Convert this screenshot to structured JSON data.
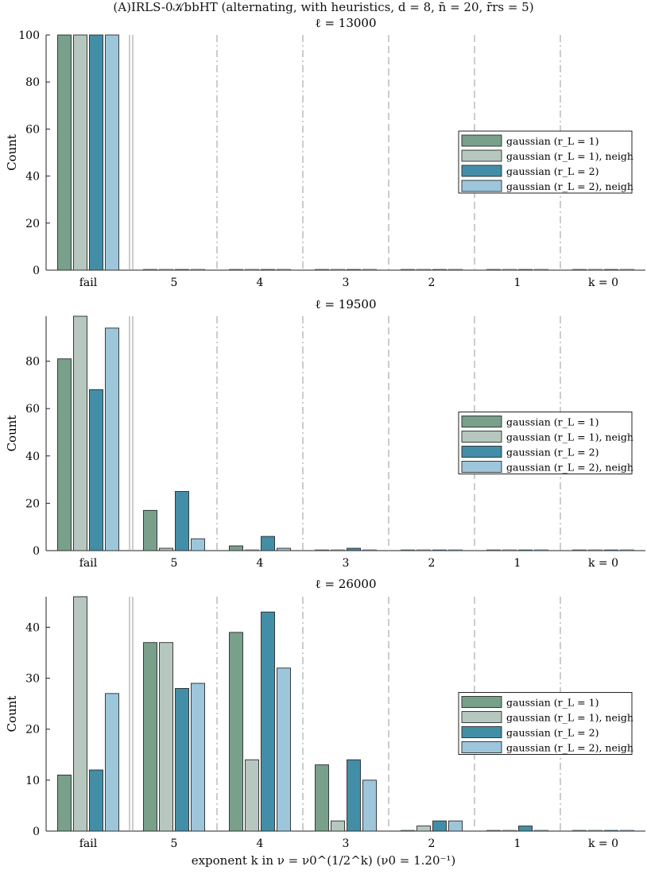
{
  "figure": {
    "title": "(A)IRLS-0𝒦bbHT (alternating, with heuristics, d = 8, n̄ = 20, r̄rs = 5)",
    "xlabel": "exponent k in ν = ν0^(1/2^k) (ν0 = 1.20⁻¹)",
    "colors": {
      "gaussian (r_L = 1)": "#78a08a",
      "gaussian (r_L = 1), neigh": "#b6c7bf",
      "gaussian (r_L = 2)": "#438ea7",
      "gaussian (r_L = 2), neigh": "#9dc6db"
    }
  },
  "chart_data": [
    {
      "type": "bar",
      "title": "ℓ = 13000",
      "xlabel": "",
      "ylabel": "Count",
      "ylim": [
        0,
        100
      ],
      "yticks": [
        0,
        20,
        40,
        60,
        80,
        100
      ],
      "categories": [
        "fail",
        "5",
        "4",
        "3",
        "2",
        "1",
        "k = 0"
      ],
      "legend": {
        "location": "right"
      },
      "series": [
        {
          "name": "gaussian (r_L = 1)",
          "label": "gaussian (r_L = 1)",
          "values": [
            100,
            0,
            0,
            0,
            0,
            0,
            0
          ]
        },
        {
          "name": "gaussian (r_L = 1), neigh",
          "label": "gaussian (r_L = 1), neigh",
          "values": [
            100,
            0,
            0,
            0,
            0,
            0,
            0
          ]
        },
        {
          "name": "gaussian (r_L = 2)",
          "label": "gaussian (r_L = 2)",
          "values": [
            100,
            0,
            0,
            0,
            0,
            0,
            0
          ]
        },
        {
          "name": "gaussian (r_L = 2), neigh",
          "label": "gaussian (r_L = 2), neigh",
          "values": [
            100,
            0,
            0,
            0,
            0,
            0,
            0
          ]
        }
      ]
    },
    {
      "type": "bar",
      "title": "ℓ = 19500",
      "xlabel": "",
      "ylabel": "Count",
      "ylim": [
        0,
        99
      ],
      "yticks": [
        0,
        20,
        40,
        60,
        80
      ],
      "categories": [
        "fail",
        "5",
        "4",
        "3",
        "2",
        "1",
        "k = 0"
      ],
      "legend": {
        "location": "right"
      },
      "series": [
        {
          "name": "gaussian (r_L = 1)",
          "label": "gaussian (r_L = 1)",
          "values": [
            81,
            17,
            2,
            0,
            0,
            0,
            0
          ]
        },
        {
          "name": "gaussian (r_L = 1), neigh",
          "label": "gaussian (r_L = 1), neigh",
          "values": [
            99,
            1,
            0,
            0,
            0,
            0,
            0
          ]
        },
        {
          "name": "gaussian (r_L = 2)",
          "label": "gaussian (r_L = 2)",
          "values": [
            68,
            25,
            6,
            1,
            0,
            0,
            0
          ]
        },
        {
          "name": "gaussian (r_L = 2), neigh",
          "label": "gaussian (r_L = 2), neigh",
          "values": [
            94,
            5,
            1,
            0,
            0,
            0,
            0
          ]
        }
      ]
    },
    {
      "type": "bar",
      "title": "ℓ = 26000",
      "xlabel": "exponent k in ν = ν0^(1/2^k) (ν0 = 1.20⁻¹)",
      "ylabel": "Count",
      "ylim": [
        0,
        46
      ],
      "yticks": [
        0,
        10,
        20,
        30,
        40
      ],
      "categories": [
        "fail",
        "5",
        "4",
        "3",
        "2",
        "1",
        "k = 0"
      ],
      "legend": {
        "location": "right"
      },
      "series": [
        {
          "name": "gaussian (r_L = 1)",
          "label": "gaussian (r_L = 1)",
          "values": [
            11,
            37,
            39,
            13,
            0,
            0,
            0
          ]
        },
        {
          "name": "gaussian (r_L = 1), neigh",
          "label": "gaussian (r_L = 1), neigh",
          "values": [
            46,
            37,
            14,
            2,
            1,
            0,
            0
          ]
        },
        {
          "name": "gaussian (r_L = 2)",
          "label": "gaussian (r_L = 2)",
          "values": [
            12,
            28,
            43,
            14,
            2,
            1,
            0
          ]
        },
        {
          "name": "gaussian (r_L = 2), neigh",
          "label": "gaussian (r_L = 2), neigh",
          "values": [
            27,
            29,
            32,
            10,
            2,
            0,
            0
          ]
        }
      ]
    }
  ]
}
